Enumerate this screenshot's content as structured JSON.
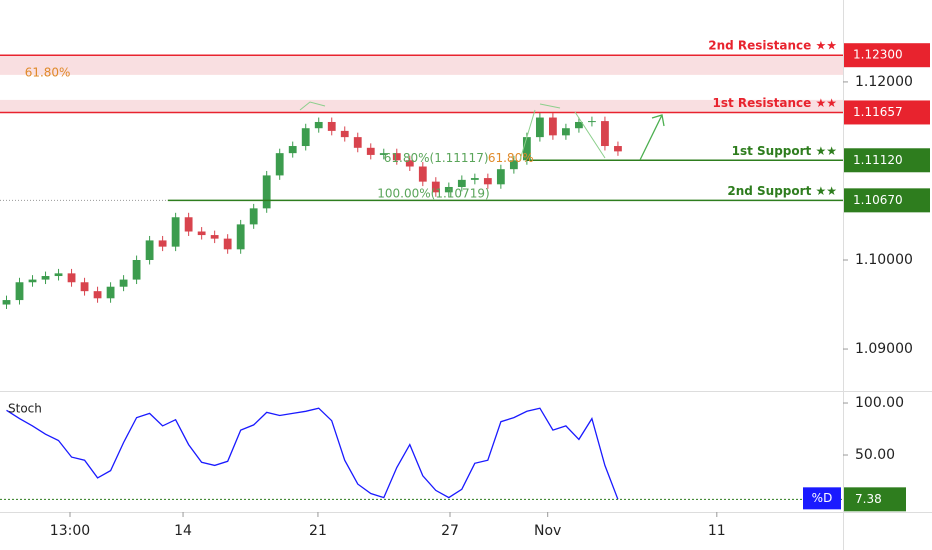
{
  "chart_data": [
    {
      "type": "candlestick",
      "open": [
        1.095,
        1.0955,
        1.0975,
        1.0978,
        1.0982,
        1.0985,
        1.0975,
        1.0965,
        1.0957,
        1.097,
        1.0978,
        1.1,
        1.1022,
        1.1015,
        1.1048,
        1.1032,
        1.1028,
        1.1024,
        1.1012,
        1.104,
        1.1058,
        1.1095,
        1.112,
        1.1128,
        1.1148,
        1.1155,
        1.1145,
        1.1138,
        1.1126,
        1.1118,
        1.112,
        1.1112,
        1.1105,
        1.1088,
        1.1076,
        1.1082,
        1.109,
        1.1092,
        1.1085,
        1.1102,
        1.1112,
        1.1138,
        1.116,
        1.114,
        1.1148,
        1.1155,
        1.1156,
        1.1128
      ],
      "high": [
        1.096,
        1.098,
        1.0983,
        1.0987,
        1.099,
        1.099,
        1.098,
        1.097,
        1.0975,
        1.0983,
        1.1005,
        1.1027,
        1.1027,
        1.1053,
        1.1053,
        1.1037,
        1.1033,
        1.1029,
        1.1045,
        1.1063,
        1.11,
        1.1125,
        1.1133,
        1.1153,
        1.116,
        1.116,
        1.115,
        1.1143,
        1.1131,
        1.1125,
        1.1125,
        1.1117,
        1.111,
        1.1093,
        1.1087,
        1.1095,
        1.1097,
        1.1097,
        1.1107,
        1.1117,
        1.1143,
        1.1165,
        1.1165,
        1.1153,
        1.116,
        1.1161,
        1.1161,
        1.1133
      ],
      "low": [
        1.0945,
        1.095,
        1.097,
        1.0973,
        1.0977,
        1.097,
        1.096,
        1.0952,
        1.0952,
        1.0965,
        1.0973,
        1.0995,
        1.101,
        1.101,
        1.1027,
        1.1023,
        1.1019,
        1.1007,
        1.1007,
        1.1035,
        1.1053,
        1.109,
        1.1115,
        1.1123,
        1.1143,
        1.114,
        1.1133,
        1.1121,
        1.1113,
        1.1113,
        1.1107,
        1.11,
        1.1083,
        1.1071,
        1.1071,
        1.1077,
        1.1085,
        1.108,
        1.108,
        1.1097,
        1.1107,
        1.1133,
        1.1135,
        1.1135,
        1.1143,
        1.115,
        1.1123,
        1.1117
      ],
      "close": [
        1.0955,
        1.0975,
        1.0978,
        1.0982,
        1.0985,
        1.0975,
        1.0965,
        1.0957,
        1.097,
        1.0978,
        1.1,
        1.1022,
        1.1015,
        1.1048,
        1.1032,
        1.1028,
        1.1024,
        1.1012,
        1.104,
        1.1058,
        1.1095,
        1.112,
        1.1128,
        1.1148,
        1.1155,
        1.1145,
        1.1138,
        1.1126,
        1.1118,
        1.112,
        1.1112,
        1.1105,
        1.1088,
        1.1076,
        1.1082,
        1.109,
        1.1092,
        1.1085,
        1.1102,
        1.1112,
        1.1138,
        1.116,
        1.114,
        1.1148,
        1.1155,
        1.1156,
        1.1128,
        1.1122
      ],
      "up_color": "#3c9c4e",
      "down_color": "#d8434d",
      "xlim": [
        -0.5,
        64.3
      ],
      "xticks": [
        {
          "value": 4.88,
          "label": "13:00"
        },
        {
          "value": 13.57,
          "label": "14"
        },
        {
          "value": 23.94,
          "label": "21"
        },
        {
          "value": 34.09,
          "label": "27"
        },
        {
          "value": 41.6,
          "label": "Nov"
        },
        {
          "value": 54.6,
          "label": "11"
        }
      ],
      "ylim": [
        1.0854,
        1.1292
      ],
      "yticks": [
        {
          "value": 1.12,
          "label": "1.12000"
        },
        {
          "value": 1.1,
          "label": "1.10000"
        },
        {
          "value": 1.09,
          "label": "1.09000"
        }
      ],
      "zones": [
        {
          "range": [
            1.12079,
            1.123
          ],
          "color": "#f8d7d9"
        },
        {
          "range": [
            1.11657,
            1.11798
          ],
          "color": "#f8d7d9"
        }
      ],
      "levels": [
        {
          "name": "2nd Resistance ★★",
          "value": 1.123,
          "label": "1.12300",
          "color": "#e8232e",
          "from": -0.5
        },
        {
          "name": "1st Resistance ★★",
          "value": 1.11657,
          "label": "1.11657",
          "color": "#e8232e",
          "from": -0.5
        },
        {
          "name": "1st Support ★★",
          "value": 1.1112,
          "label": "1.11120",
          "color": "#2e7d1e",
          "from": 40
        },
        {
          "name": "2nd Support ★★",
          "value": 1.1067,
          "label": "1.10670",
          "color": "#2e7d1e",
          "from": 12.4
        }
      ],
      "annotations": [
        {
          "text": "61.80%",
          "x": 1.4,
          "y": 1.12079,
          "color": "#e08a2a"
        },
        {
          "text": "61.80%(1.11117)",
          "x": 29.0,
          "y": 1.11117,
          "color": "#5aa55a"
        },
        {
          "text": "61.80%",
          "x": 37.0,
          "y": 1.11117,
          "color": "#e08a2a"
        },
        {
          "text": "100.00%(1.10719)",
          "x": 28.5,
          "y": 1.10719,
          "color": "#5aa55a"
        }
      ]
    },
    {
      "type": "line",
      "title": "Stoch",
      "xlim": [
        -0.5,
        64.3
      ],
      "ylim": [
        -4.8,
        110.6
      ],
      "yticks": [
        {
          "value": 100,
          "label": "100.00"
        },
        {
          "value": 50,
          "label": "50.00"
        }
      ],
      "series": [
        {
          "name": "%D",
          "color": "#1a1aff",
          "values": [
            93,
            85,
            78,
            70,
            64,
            48,
            45,
            28,
            35,
            62,
            86,
            90,
            78,
            84,
            60,
            43,
            40,
            44,
            74,
            79,
            91,
            88,
            90,
            92,
            95,
            83,
            45,
            22,
            13,
            9,
            38,
            60,
            30,
            16,
            9,
            17,
            42,
            45,
            82,
            86,
            92,
            95,
            74,
            78,
            65,
            85,
            40,
            7.38
          ]
        }
      ],
      "last_label": "7.38",
      "last_color": "#2e7d1e"
    }
  ]
}
